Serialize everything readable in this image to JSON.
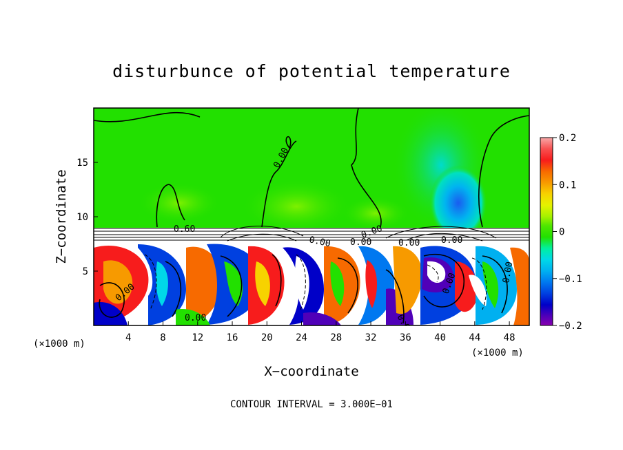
{
  "chart_data": {
    "type": "heatmap",
    "title": "disturbunce of potential temperature",
    "xlabel": "X−coordinate",
    "ylabel": "Z−coordinate",
    "x_unit": "(×1000 m)",
    "x_unit_right": "(×1000 m)",
    "xlim": [
      0,
      50.3
    ],
    "ylim": [
      0,
      20
    ],
    "x_ticks": [
      "4",
      "8",
      "12",
      "16",
      "20",
      "24",
      "28",
      "32",
      "36",
      "40",
      "44",
      "48"
    ],
    "x_tick_values": [
      4,
      8,
      12,
      16,
      20,
      24,
      28,
      32,
      36,
      40,
      44,
      48
    ],
    "y_ticks": [
      "5",
      "10",
      "15"
    ],
    "y_tick_values": [
      5,
      10,
      15
    ],
    "colorbar": {
      "range": [
        -0.2,
        0.2
      ],
      "tick_labels": [
        "0.2",
        "0.1",
        "0",
        "−0.1",
        "−0.2"
      ],
      "tick_values": [
        0.2,
        0.1,
        0,
        -0.1,
        -0.2
      ],
      "colors": [
        "#f7a9a9",
        "#f75050",
        "#f71c1c",
        "#f76a00",
        "#f79a00",
        "#f7d200",
        "#e5f200",
        "#a6f200",
        "#4ee600",
        "#22e000",
        "#00f0a0",
        "#00d8e8",
        "#00b0f0",
        "#0078f0",
        "#0040e0",
        "#0000c8",
        "#5000b8",
        "#8800b0"
      ]
    },
    "contour_labels": [
      "0.60",
      "0.00",
      "0.00",
      "0.00",
      "0.00",
      "0.00",
      "0.00",
      "0.00",
      "0.00",
      "0.00",
      "0.00",
      "0.00"
    ],
    "grid": false
  },
  "footer": {
    "contour_interval": "CONTOUR INTERVAL = 3.000E−01"
  }
}
